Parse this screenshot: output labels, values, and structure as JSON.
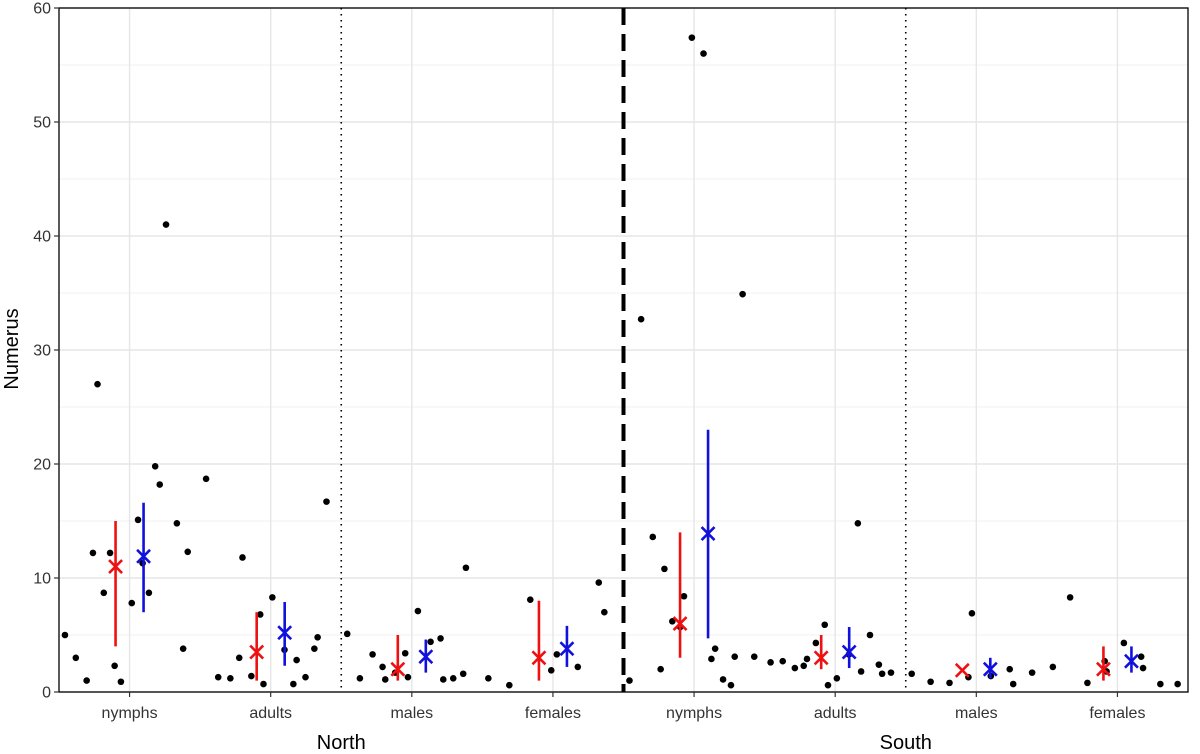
{
  "chart_data": {
    "type": "scatter",
    "title": "",
    "ylabel": "Numerus",
    "xlabel": "",
    "ylim": [
      0,
      60
    ],
    "y_ticks": [
      0,
      10,
      20,
      30,
      40,
      50,
      60
    ],
    "grid": true,
    "categories": [
      "nymphs",
      "adults",
      "males",
      "females",
      "nymphs",
      "adults",
      "males",
      "females"
    ],
    "groups": [
      {
        "label": "North",
        "categories": [
          0,
          1,
          2,
          3
        ]
      },
      {
        "label": "South",
        "categories": [
          4,
          5,
          6,
          7
        ]
      }
    ],
    "colors": {
      "points": "#000000",
      "summary_a": "#ee1111",
      "summary_b": "#1111dd",
      "grid": "#e6e6e6"
    },
    "points": [
      [
        5,
        3,
        1,
        27,
        12.2,
        8.7,
        2.3,
        12.2,
        0.9,
        7.8,
        11.3,
        15.1,
        8.7,
        18.2,
        19.8,
        41,
        14.8,
        12.3,
        3.8
      ],
      [
        18.7,
        1.3,
        1.2,
        11.8,
        3,
        1.4,
        0.7,
        6.8,
        8.3,
        3.7,
        2.8,
        0.7,
        1.3,
        4.8,
        3.8,
        16.7
      ],
      [
        5.1,
        1.2,
        3.3,
        1.1,
        2.2,
        1.7,
        1.3,
        3.4,
        7.1,
        4.4,
        1.1,
        4.7,
        1.2,
        10.9,
        1.6
      ],
      [
        1.2,
        0.6,
        8.1,
        1.9,
        3.3,
        2.2,
        9.6,
        7
      ],
      [
        1,
        32.7,
        13.6,
        10.8,
        2,
        6.2,
        8.4,
        5.7,
        57.4,
        56,
        3.8,
        2.9,
        1.1,
        3.1,
        0.6,
        34.9,
        3.1
      ],
      [
        2.6,
        2.7,
        2.1,
        2.9,
        2.3,
        4.3,
        0.6,
        5.9,
        1.2,
        3.3,
        1.8,
        14.8,
        5,
        1.6,
        2.4,
        1.7
      ],
      [
        1.6,
        0.9,
        0.8,
        1.3,
        6.9,
        1.4,
        2,
        0.7,
        1.7
      ],
      [
        2.2,
        8.3,
        0.8,
        2.7,
        1.8,
        4.3,
        3.1,
        2.1,
        0.7,
        0.7
      ]
    ],
    "summaries": [
      [
        {
          "mean": 11,
          "low": 4,
          "high": 15
        },
        {
          "mean": 11.9,
          "low": 7,
          "high": 16.6
        }
      ],
      [
        {
          "mean": 3.5,
          "low": 1,
          "high": 7
        },
        {
          "mean": 5.2,
          "low": 2.3,
          "high": 7.9
        }
      ],
      [
        {
          "mean": 2,
          "low": 1,
          "high": 5
        },
        {
          "mean": 3.1,
          "low": 1.7,
          "high": 4.6
        }
      ],
      [
        {
          "mean": 3,
          "low": 1,
          "high": 8
        },
        {
          "mean": 3.8,
          "low": 2.2,
          "high": 5.8
        }
      ],
      [
        {
          "mean": 6,
          "low": 3,
          "high": 14
        },
        {
          "mean": 13.9,
          "low": 4.7,
          "high": 23
        }
      ],
      [
        {
          "mean": 3,
          "low": 2,
          "high": 5
        },
        {
          "mean": 3.5,
          "low": 2.1,
          "high": 5.7
        }
      ],
      [
        {
          "mean": 1.9,
          "low": 1.9,
          "high": 1.9
        },
        {
          "mean": 2,
          "low": 1.2,
          "high": 3
        }
      ],
      [
        {
          "mean": 2,
          "low": 1,
          "high": 4
        },
        {
          "mean": 2.7,
          "low": 1.7,
          "high": 4
        }
      ]
    ]
  }
}
